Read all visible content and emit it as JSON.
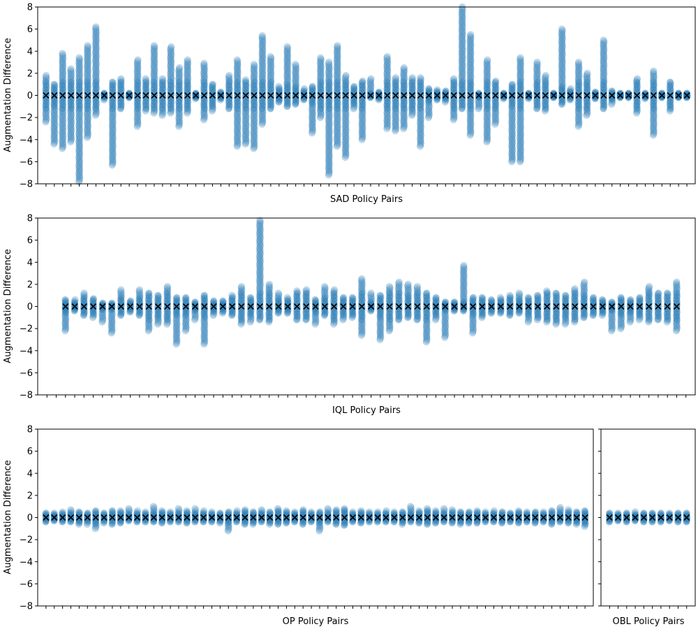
{
  "colors": {
    "points": "#1f77b4",
    "marker": "#000000",
    "frame": "#000000",
    "background": "#ffffff"
  },
  "chart_data": [
    {
      "id": "sad",
      "type": "scatter",
      "xlabel": "SAD Policy Pairs",
      "ylabel": "Augmentation Difference",
      "ylim": [
        -8,
        8
      ],
      "yticks": [
        "8",
        "6",
        "4",
        "2",
        "0",
        "−2",
        "−4",
        "−6",
        "−8"
      ],
      "x_start": 1,
      "x_count": 78,
      "x_max": 79,
      "ranges": [
        [
          -2.4,
          1.8
        ],
        [
          -4.4,
          1.0
        ],
        [
          -4.8,
          3.8
        ],
        [
          -4.2,
          2.4
        ],
        [
          -7.8,
          3.4
        ],
        [
          -3.8,
          4.5
        ],
        [
          -1.8,
          6.2
        ],
        [
          -0.4,
          0.2
        ],
        [
          -6.3,
          1.2
        ],
        [
          -1.2,
          1.5
        ],
        [
          -0.2,
          0.2
        ],
        [
          -2.8,
          3.2
        ],
        [
          -1.4,
          1.5
        ],
        [
          -1.6,
          4.5
        ],
        [
          -1.8,
          1.5
        ],
        [
          -1.6,
          4.4
        ],
        [
          -2.8,
          2.5
        ],
        [
          -1.6,
          3.2
        ],
        [
          -0.3,
          0.2
        ],
        [
          -2.2,
          2.9
        ],
        [
          -1.4,
          1.0
        ],
        [
          -0.4,
          0.3
        ],
        [
          -1.2,
          1.8
        ],
        [
          -4.6,
          3.2
        ],
        [
          -4.4,
          1.4
        ],
        [
          -4.8,
          2.8
        ],
        [
          -2.6,
          5.4
        ],
        [
          -1.2,
          3.5
        ],
        [
          -0.6,
          0.8
        ],
        [
          -1.0,
          4.4
        ],
        [
          -0.8,
          2.8
        ],
        [
          -0.4,
          0.6
        ],
        [
          -3.4,
          0.8
        ],
        [
          -2.0,
          3.4
        ],
        [
          -7.2,
          3.0
        ],
        [
          -4.6,
          4.5
        ],
        [
          -5.6,
          1.8
        ],
        [
          -1.2,
          0.8
        ],
        [
          -4.0,
          1.3
        ],
        [
          -0.2,
          1.5
        ],
        [
          -0.4,
          0.3
        ],
        [
          -3.0,
          3.5
        ],
        [
          -3.2,
          1.6
        ],
        [
          -3.0,
          2.5
        ],
        [
          -1.8,
          1.6
        ],
        [
          -4.6,
          1.6
        ],
        [
          -2.0,
          0.6
        ],
        [
          -0.4,
          0.5
        ],
        [
          -0.6,
          0.4
        ],
        [
          -2.2,
          1.5
        ],
        [
          -1.2,
          8.0
        ],
        [
          -3.6,
          5.5
        ],
        [
          -1.2,
          0.2
        ],
        [
          -4.2,
          3.2
        ],
        [
          -2.6,
          1.3
        ],
        [
          -0.3,
          0.2
        ],
        [
          -6.0,
          1.0
        ],
        [
          -6.0,
          3.4
        ],
        [
          -0.3,
          0.2
        ],
        [
          -1.2,
          3.0
        ],
        [
          -1.4,
          1.8
        ],
        [
          -0.2,
          0.2
        ],
        [
          -0.8,
          6.0
        ],
        [
          -0.4,
          0.6
        ],
        [
          -2.8,
          3.0
        ],
        [
          -1.8,
          2.0
        ],
        [
          -0.3,
          0.3
        ],
        [
          -1.2,
          5.0
        ],
        [
          -0.8,
          0.4
        ],
        [
          -0.2,
          0.2
        ],
        [
          -0.2,
          0.2
        ],
        [
          -1.6,
          1.5
        ],
        [
          -0.3,
          0.2
        ],
        [
          -3.6,
          2.2
        ],
        [
          -0.2,
          0.2
        ],
        [
          -1.4,
          1.2
        ],
        [
          -0.2,
          0.2
        ],
        [
          -0.2,
          0.2
        ]
      ]
    },
    {
      "id": "iql",
      "type": "scatter",
      "xlabel": "IQL Policy Pairs",
      "ylabel": "Augmentation Difference",
      "ylim": [
        -8,
        8
      ],
      "yticks": [
        "8",
        "6",
        "4",
        "2",
        "0",
        "−2",
        "−4",
        "−6",
        "−8"
      ],
      "x_start": 3,
      "x_count": 67,
      "x_max": 71,
      "ranges": [
        [
          -2.2,
          0.6
        ],
        [
          -0.4,
          0.6
        ],
        [
          -0.8,
          1.2
        ],
        [
          -1.0,
          0.7
        ],
        [
          -1.4,
          0.3
        ],
        [
          -2.4,
          0.3
        ],
        [
          -0.8,
          1.5
        ],
        [
          -0.5,
          0.5
        ],
        [
          -0.8,
          1.5
        ],
        [
          -2.2,
          1.2
        ],
        [
          -1.6,
          1.0
        ],
        [
          -1.6,
          1.8
        ],
        [
          -3.4,
          0.8
        ],
        [
          -2.2,
          0.8
        ],
        [
          -1.2,
          0.4
        ],
        [
          -3.4,
          1.0
        ],
        [
          -0.8,
          0.5
        ],
        [
          -0.6,
          0.5
        ],
        [
          -0.8,
          1.0
        ],
        [
          -1.6,
          1.8
        ],
        [
          -1.4,
          0.8
        ],
        [
          -1.2,
          7.8
        ],
        [
          -1.4,
          2.0
        ],
        [
          -0.6,
          1.2
        ],
        [
          -0.6,
          0.8
        ],
        [
          -1.2,
          1.4
        ],
        [
          -1.2,
          1.5
        ],
        [
          -1.6,
          0.6
        ],
        [
          -0.8,
          1.8
        ],
        [
          -1.6,
          1.5
        ],
        [
          -1.2,
          0.8
        ],
        [
          -1.0,
          0.8
        ],
        [
          -2.6,
          2.5
        ],
        [
          -0.4,
          1.2
        ],
        [
          -3.0,
          1.0
        ],
        [
          -2.2,
          1.8
        ],
        [
          -1.2,
          2.2
        ],
        [
          -1.0,
          2.0
        ],
        [
          -1.2,
          1.8
        ],
        [
          -3.2,
          1.2
        ],
        [
          -1.2,
          0.8
        ],
        [
          -2.8,
          0.4
        ],
        [
          -0.4,
          0.4
        ],
        [
          -0.4,
          3.7
        ],
        [
          -2.4,
          0.8
        ],
        [
          -1.0,
          0.8
        ],
        [
          -0.6,
          0.6
        ],
        [
          -0.6,
          0.8
        ],
        [
          -0.8,
          1.0
        ],
        [
          -0.6,
          1.2
        ],
        [
          -1.4,
          0.8
        ],
        [
          -1.2,
          1.0
        ],
        [
          -1.4,
          1.4
        ],
        [
          -1.6,
          1.2
        ],
        [
          -1.6,
          1.0
        ],
        [
          -1.4,
          1.6
        ],
        [
          -1.0,
          2.2
        ],
        [
          -0.8,
          0.8
        ],
        [
          -0.8,
          0.6
        ],
        [
          -2.2,
          0.4
        ],
        [
          -2.0,
          0.8
        ],
        [
          -1.4,
          0.6
        ],
        [
          -1.2,
          0.8
        ],
        [
          -1.4,
          1.8
        ],
        [
          -1.2,
          1.2
        ],
        [
          -1.4,
          1.2
        ],
        [
          -2.2,
          2.2
        ]
      ]
    },
    {
      "id": "op",
      "type": "scatter",
      "xlabel": "OP Policy Pairs",
      "ylabel": "Augmentation Difference",
      "ylim": [
        -8,
        8
      ],
      "yticks": [
        "8",
        "6",
        "4",
        "2",
        "0",
        "−2",
        "−4",
        "−6",
        "−8"
      ],
      "x_start": 1,
      "x_count": 66,
      "x_max": 67,
      "ranges": [
        [
          -0.4,
          0.4
        ],
        [
          -0.3,
          0.4
        ],
        [
          -0.4,
          0.5
        ],
        [
          -0.4,
          0.7
        ],
        [
          -0.6,
          0.5
        ],
        [
          -0.6,
          0.4
        ],
        [
          -1.0,
          0.6
        ],
        [
          -0.5,
          0.4
        ],
        [
          -0.6,
          0.6
        ],
        [
          -0.5,
          0.6
        ],
        [
          -0.3,
          0.8
        ],
        [
          -0.4,
          0.6
        ],
        [
          -0.4,
          0.5
        ],
        [
          -0.4,
          1.0
        ],
        [
          -0.5,
          0.6
        ],
        [
          -0.4,
          0.5
        ],
        [
          -0.4,
          0.8
        ],
        [
          -0.5,
          0.6
        ],
        [
          -0.4,
          0.8
        ],
        [
          -0.4,
          0.6
        ],
        [
          -0.4,
          0.5
        ],
        [
          -0.5,
          0.4
        ],
        [
          -1.2,
          0.5
        ],
        [
          -0.4,
          0.6
        ],
        [
          -0.6,
          0.7
        ],
        [
          -0.6,
          0.5
        ],
        [
          -0.4,
          0.7
        ],
        [
          -0.6,
          0.5
        ],
        [
          -0.6,
          0.8
        ],
        [
          -0.5,
          0.6
        ],
        [
          -0.4,
          0.5
        ],
        [
          -0.6,
          0.7
        ],
        [
          -0.4,
          0.5
        ],
        [
          -1.2,
          0.5
        ],
        [
          -0.4,
          0.8
        ],
        [
          -0.6,
          0.7
        ],
        [
          -0.7,
          0.8
        ],
        [
          -0.4,
          0.5
        ],
        [
          -0.5,
          0.6
        ],
        [
          -0.4,
          0.5
        ],
        [
          -0.4,
          0.5
        ],
        [
          -0.4,
          0.6
        ],
        [
          -0.4,
          0.5
        ],
        [
          -0.6,
          0.5
        ],
        [
          -0.4,
          1.0
        ],
        [
          -0.5,
          0.6
        ],
        [
          -0.6,
          0.8
        ],
        [
          -0.5,
          0.6
        ],
        [
          -0.4,
          0.8
        ],
        [
          -0.5,
          0.7
        ],
        [
          -0.6,
          0.5
        ],
        [
          -0.5,
          0.5
        ],
        [
          -0.5,
          0.6
        ],
        [
          -0.4,
          0.5
        ],
        [
          -0.4,
          0.6
        ],
        [
          -0.5,
          0.5
        ],
        [
          -0.4,
          0.4
        ],
        [
          -0.5,
          0.6
        ],
        [
          -0.4,
          0.5
        ],
        [
          -0.5,
          0.5
        ],
        [
          -0.4,
          0.5
        ],
        [
          -0.6,
          0.6
        ],
        [
          -0.4,
          0.9
        ],
        [
          -0.5,
          0.7
        ],
        [
          -0.6,
          0.5
        ],
        [
          -0.8,
          0.6
        ]
      ]
    },
    {
      "id": "obl",
      "type": "scatter",
      "xlabel": "OBL Policy Pairs",
      "ylabel": "",
      "ylim": [
        -8,
        8
      ],
      "yticks": [],
      "x_start": 1,
      "x_count": 10,
      "x_max": 11,
      "ranges": [
        [
          -0.4,
          0.4
        ],
        [
          -0.3,
          0.4
        ],
        [
          -0.4,
          0.4
        ],
        [
          -0.3,
          0.5
        ],
        [
          -0.4,
          0.4
        ],
        [
          -0.4,
          0.4
        ],
        [
          -0.4,
          0.4
        ],
        [
          -0.3,
          0.4
        ],
        [
          -0.4,
          0.4
        ],
        [
          -0.4,
          0.4
        ]
      ]
    }
  ]
}
